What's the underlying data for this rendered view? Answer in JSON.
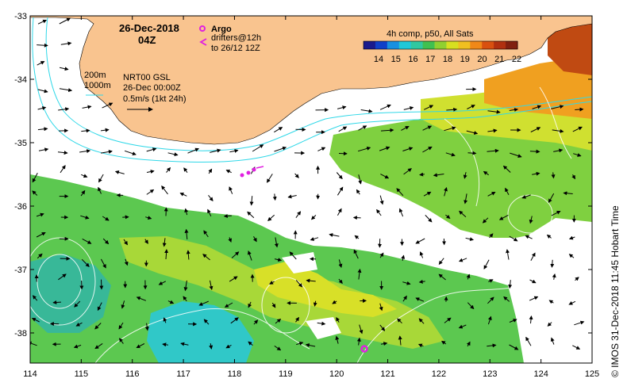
{
  "title": {
    "date": "26-Dec-2018",
    "time": "04Z"
  },
  "legend_argo": {
    "label": "Argo",
    "color": "#e020e0"
  },
  "legend_drifters": {
    "line1": "drifters@12h",
    "line2": "to 26/12 12Z",
    "color": "#e020e0"
  },
  "colorbar": {
    "title": "4h comp, p50, All Sats",
    "ticks": [
      "14",
      "15",
      "16",
      "17",
      "18",
      "19",
      "20",
      "21",
      "22"
    ],
    "colors": [
      "#1a1a8c",
      "#1040c8",
      "#1890e0",
      "#20c8d8",
      "#30c8a0",
      "#40c050",
      "#90d030",
      "#d8e020",
      "#f0c020",
      "#f08818",
      "#d85010",
      "#b03010",
      "#802010"
    ]
  },
  "contour_labels": {
    "shallow": "200m",
    "deep": "1000m"
  },
  "model_info": {
    "line1": "NRT00 GSL",
    "line2": "26-Dec 00:00Z",
    "line3": "0.5m/s (1kt 24h)"
  },
  "credit": "© IMOS 31-Dec-2018 11:45 Hobart Time",
  "axes": {
    "x_ticks": [
      "114",
      "115",
      "116",
      "117",
      "118",
      "119",
      "120",
      "121",
      "122",
      "123",
      "124",
      "125"
    ],
    "y_ticks": [
      "-33",
      "-34",
      "-35",
      "-36",
      "-37",
      "-38"
    ]
  },
  "colors": {
    "land": "#f9c48f",
    "bathymetry": "#30d8e8",
    "ssh_contour": "#ffffff",
    "arrow": "#000000"
  }
}
